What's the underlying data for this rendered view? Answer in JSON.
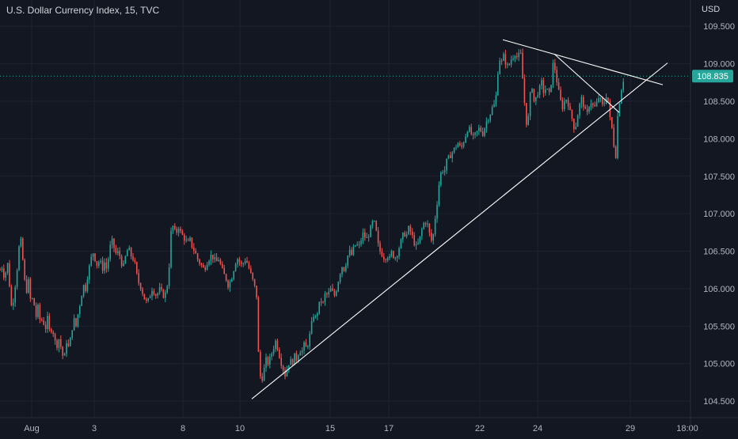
{
  "header": {
    "title": "U.S. Dollar Currency Index, 15, TVC",
    "currency": "USD"
  },
  "colors": {
    "background": "#131722",
    "grid": "#1f2330",
    "axis_text": "#b2b5be",
    "up": "#26a69a",
    "down": "#ef5350",
    "price_line": "#26a69a",
    "trendline": "#ffffff"
  },
  "chart_data": {
    "type": "candlestick",
    "title": "U.S. Dollar Currency Index, 15, TVC",
    "xlabel": "",
    "ylabel": "USD",
    "ylim": [
      104.28,
      109.85
    ],
    "y_ticks": [
      "104.500",
      "105.000",
      "105.500",
      "106.000",
      "106.500",
      "107.000",
      "107.500",
      "108.000",
      "108.500",
      "109.000",
      "109.500"
    ],
    "x_ticks": [
      "Aug",
      "3",
      "8",
      "10",
      "15",
      "17",
      "22",
      "24",
      "29",
      "18:00"
    ],
    "last_price": "108.835",
    "grid": true,
    "price_path": [
      [
        0,
        106.25
      ],
      [
        3,
        106.3
      ],
      [
        6,
        106.1
      ],
      [
        9,
        106.4
      ],
      [
        12,
        106.05
      ],
      [
        15,
        105.7
      ],
      [
        18,
        105.95
      ],
      [
        21,
        106.2
      ],
      [
        24,
        106.55
      ],
      [
        27,
        106.65
      ],
      [
        30,
        106.2
      ],
      [
        33,
        105.95
      ],
      [
        36,
        106.1
      ],
      [
        39,
        105.8
      ],
      [
        42,
        105.9
      ],
      [
        45,
        105.6
      ],
      [
        48,
        105.75
      ],
      [
        51,
        105.55
      ],
      [
        54,
        105.6
      ],
      [
        57,
        105.45
      ],
      [
        60,
        105.6
      ],
      [
        63,
        105.4
      ],
      [
        66,
        105.5
      ],
      [
        69,
        105.3
      ],
      [
        72,
        105.25
      ],
      [
        75,
        105.35
      ],
      [
        78,
        105.15
      ],
      [
        81,
        105.05
      ],
      [
        84,
        105.3
      ],
      [
        87,
        105.2
      ],
      [
        90,
        105.4
      ],
      [
        93,
        105.6
      ],
      [
        96,
        105.5
      ],
      [
        99,
        105.7
      ],
      [
        102,
        105.85
      ],
      [
        105,
        106.05
      ],
      [
        108,
        106.0
      ],
      [
        111,
        106.2
      ],
      [
        114,
        106.35
      ],
      [
        117,
        106.5
      ],
      [
        120,
        106.4
      ],
      [
        123,
        106.3
      ],
      [
        126,
        106.4
      ],
      [
        129,
        106.25
      ],
      [
        132,
        106.35
      ],
      [
        135,
        106.25
      ],
      [
        138,
        106.5
      ],
      [
        141,
        106.65
      ],
      [
        144,
        106.55
      ],
      [
        147,
        106.45
      ],
      [
        150,
        106.5
      ],
      [
        153,
        106.35
      ],
      [
        156,
        106.3
      ],
      [
        159,
        106.45
      ],
      [
        162,
        106.55
      ],
      [
        165,
        106.45
      ],
      [
        168,
        106.4
      ],
      [
        171,
        106.3
      ],
      [
        174,
        106.1
      ],
      [
        177,
        106.05
      ],
      [
        180,
        105.95
      ],
      [
        183,
        105.85
      ],
      [
        186,
        105.8
      ],
      [
        189,
        105.9
      ],
      [
        192,
        106.0
      ],
      [
        195,
        105.95
      ],
      [
        198,
        105.9
      ],
      [
        201,
        106.0
      ],
      [
        204,
        105.95
      ],
      [
        207,
        105.9
      ],
      [
        210,
        105.95
      ],
      [
        213,
        106.2
      ],
      [
        216,
        106.75
      ],
      [
        219,
        106.85
      ],
      [
        222,
        106.7
      ],
      [
        225,
        106.85
      ],
      [
        228,
        106.75
      ],
      [
        231,
        106.7
      ],
      [
        234,
        106.65
      ],
      [
        237,
        106.6
      ],
      [
        240,
        106.65
      ],
      [
        243,
        106.55
      ],
      [
        246,
        106.5
      ],
      [
        249,
        106.4
      ],
      [
        252,
        106.35
      ],
      [
        255,
        106.3
      ],
      [
        258,
        106.25
      ],
      [
        261,
        106.35
      ],
      [
        264,
        106.4
      ],
      [
        267,
        106.45
      ],
      [
        270,
        106.4
      ],
      [
        273,
        106.35
      ],
      [
        276,
        106.4
      ],
      [
        279,
        106.3
      ],
      [
        282,
        106.2
      ],
      [
        285,
        106.15
      ],
      [
        288,
        106.05
      ],
      [
        291,
        106.1
      ],
      [
        294,
        106.2
      ],
      [
        297,
        106.35
      ],
      [
        300,
        106.4
      ],
      [
        303,
        106.35
      ],
      [
        306,
        106.3
      ],
      [
        309,
        106.4
      ],
      [
        312,
        106.35
      ],
      [
        315,
        106.25
      ],
      [
        318,
        106.15
      ],
      [
        321,
        106.05
      ],
      [
        324,
        105.9
      ],
      [
        327,
        104.95
      ],
      [
        330,
        104.75
      ],
      [
        333,
        104.9
      ],
      [
        336,
        105.05
      ],
      [
        339,
        105.0
      ],
      [
        342,
        105.1
      ],
      [
        345,
        105.2
      ],
      [
        348,
        105.3
      ],
      [
        351,
        105.2
      ],
      [
        354,
        105.05
      ],
      [
        357,
        104.95
      ],
      [
        360,
        104.85
      ],
      [
        363,
        104.95
      ],
      [
        366,
        105.05
      ],
      [
        369,
        105.0
      ],
      [
        372,
        105.1
      ],
      [
        375,
        105.05
      ],
      [
        378,
        105.2
      ],
      [
        381,
        105.15
      ],
      [
        384,
        105.25
      ],
      [
        387,
        105.2
      ],
      [
        390,
        105.3
      ],
      [
        393,
        105.5
      ],
      [
        396,
        105.65
      ],
      [
        399,
        105.6
      ],
      [
        402,
        105.75
      ],
      [
        405,
        105.85
      ],
      [
        408,
        105.8
      ],
      [
        411,
        105.95
      ],
      [
        414,
        105.9
      ],
      [
        417,
        106.0
      ],
      [
        420,
        105.95
      ],
      [
        423,
        105.9
      ],
      [
        426,
        106.05
      ],
      [
        429,
        106.2
      ],
      [
        432,
        106.3
      ],
      [
        435,
        106.25
      ],
      [
        438,
        106.4
      ],
      [
        441,
        106.5
      ],
      [
        444,
        106.45
      ],
      [
        447,
        106.55
      ],
      [
        450,
        106.6
      ],
      [
        453,
        106.55
      ],
      [
        456,
        106.65
      ],
      [
        459,
        106.75
      ],
      [
        462,
        106.65
      ],
      [
        465,
        106.7
      ],
      [
        468,
        106.8
      ],
      [
        471,
        106.9
      ],
      [
        474,
        106.85
      ],
      [
        477,
        106.6
      ],
      [
        480,
        106.5
      ],
      [
        483,
        106.45
      ],
      [
        486,
        106.4
      ],
      [
        489,
        106.45
      ],
      [
        492,
        106.4
      ],
      [
        495,
        106.5
      ],
      [
        498,
        106.4
      ],
      [
        501,
        106.45
      ],
      [
        504,
        106.55
      ],
      [
        507,
        106.65
      ],
      [
        510,
        106.75
      ],
      [
        513,
        106.7
      ],
      [
        516,
        106.8
      ],
      [
        519,
        106.75
      ],
      [
        522,
        106.65
      ],
      [
        525,
        106.55
      ],
      [
        528,
        106.6
      ],
      [
        531,
        106.7
      ],
      [
        534,
        106.85
      ],
      [
        537,
        106.9
      ],
      [
        540,
        106.85
      ],
      [
        543,
        106.7
      ],
      [
        546,
        106.6
      ],
      [
        549,
        106.9
      ],
      [
        552,
        107.15
      ],
      [
        555,
        107.45
      ],
      [
        558,
        107.6
      ],
      [
        561,
        107.55
      ],
      [
        564,
        107.7
      ],
      [
        567,
        107.75
      ],
      [
        570,
        107.8
      ],
      [
        573,
        107.85
      ],
      [
        576,
        107.9
      ],
      [
        579,
        107.95
      ],
      [
        582,
        107.85
      ],
      [
        585,
        107.95
      ],
      [
        588,
        108.05
      ],
      [
        591,
        108.15
      ],
      [
        594,
        108.1
      ],
      [
        597,
        108.0
      ],
      [
        600,
        108.05
      ],
      [
        603,
        108.1
      ],
      [
        606,
        108.15
      ],
      [
        609,
        108.05
      ],
      [
        612,
        108.15
      ],
      [
        615,
        108.25
      ],
      [
        618,
        108.3
      ],
      [
        621,
        108.4
      ],
      [
        624,
        108.45
      ],
      [
        627,
        108.6
      ],
      [
        630,
        109.1
      ],
      [
        633,
        109.0
      ],
      [
        636,
        109.1
      ],
      [
        639,
        109.0
      ],
      [
        642,
        108.95
      ],
      [
        645,
        109.05
      ],
      [
        648,
        109.1
      ],
      [
        651,
        109.15
      ],
      [
        654,
        109.05
      ],
      [
        657,
        109.2
      ],
      [
        660,
        108.8
      ],
      [
        663,
        108.4
      ],
      [
        666,
        108.1
      ],
      [
        669,
        108.55
      ],
      [
        672,
        108.7
      ],
      [
        675,
        108.45
      ],
      [
        678,
        108.6
      ],
      [
        681,
        108.65
      ],
      [
        684,
        108.75
      ],
      [
        687,
        108.6
      ],
      [
        690,
        108.7
      ],
      [
        693,
        108.55
      ],
      [
        696,
        108.75
      ],
      [
        699,
        109.05
      ],
      [
        702,
        108.85
      ],
      [
        705,
        108.65
      ],
      [
        708,
        108.5
      ],
      [
        711,
        108.4
      ],
      [
        714,
        108.55
      ],
      [
        717,
        108.5
      ],
      [
        720,
        108.35
      ],
      [
        723,
        108.25
      ],
      [
        726,
        108.1
      ],
      [
        729,
        108.3
      ],
      [
        732,
        108.45
      ],
      [
        735,
        108.55
      ],
      [
        738,
        108.4
      ],
      [
        741,
        108.3
      ],
      [
        744,
        108.45
      ],
      [
        747,
        108.5
      ],
      [
        750,
        108.4
      ],
      [
        753,
        108.45
      ],
      [
        756,
        108.55
      ],
      [
        759,
        108.5
      ],
      [
        762,
        108.4
      ],
      [
        765,
        108.6
      ],
      [
        768,
        108.5
      ],
      [
        771,
        108.2
      ],
      [
        774,
        108.1
      ],
      [
        777,
        107.65
      ],
      [
        780,
        108.3
      ],
      [
        783,
        108.55
      ],
      [
        786,
        108.75
      ],
      [
        789,
        108.83
      ]
    ],
    "lines": [
      {
        "x1": 318,
        "y1": 104.53,
        "x2": 843,
        "y2": 109.01
      },
      {
        "x1": 635,
        "y1": 109.32,
        "x2": 837,
        "y2": 108.72
      },
      {
        "x1": 700,
        "y1": 109.13,
        "x2": 782,
        "y2": 108.35
      }
    ]
  }
}
